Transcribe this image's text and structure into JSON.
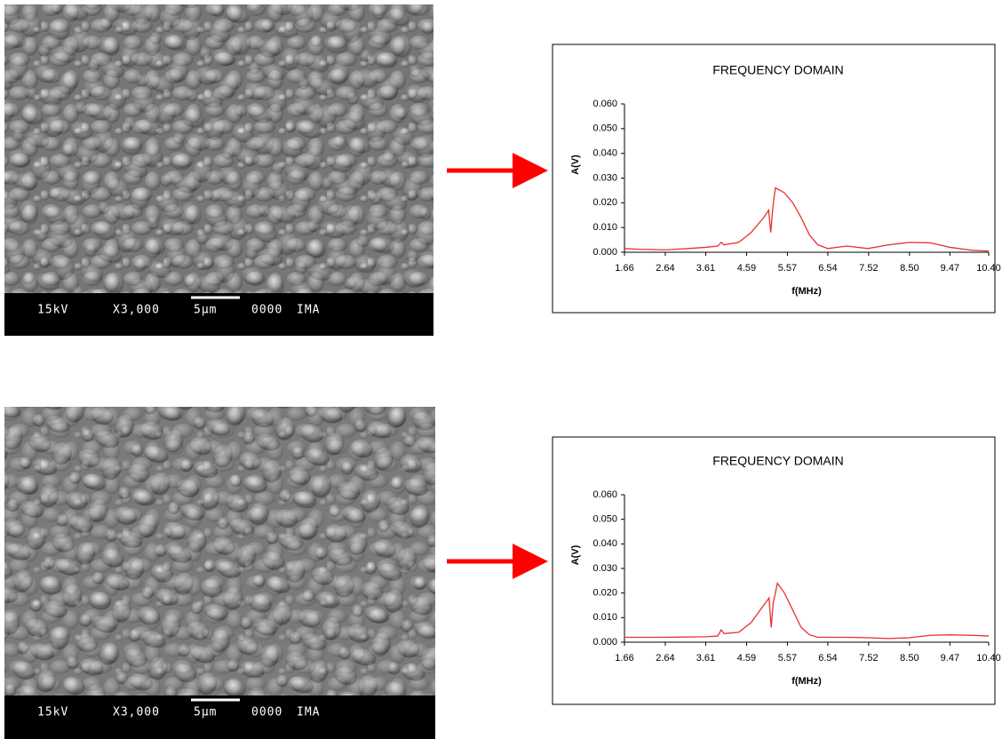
{
  "images": [
    {
      "voltage": "15kV",
      "magnification": "X3,000",
      "scale": "5μm",
      "code": "0000",
      "lab": "IMA"
    },
    {
      "voltage": "15kV",
      "magnification": "X3,000",
      "scale": "5μm",
      "code": "0000",
      "lab": "IMA"
    }
  ],
  "chart_data": [
    {
      "type": "line",
      "title": "FREQUENCY DOMAIN",
      "x_label": "f(MHz)",
      "y_label": "A(V)",
      "x": [
        1.66,
        2.0,
        2.64,
        3.2,
        3.61,
        3.9,
        3.98,
        4.05,
        4.4,
        4.7,
        5.0,
        5.12,
        5.17,
        5.22,
        5.28,
        5.4,
        5.5,
        5.7,
        5.9,
        6.1,
        6.3,
        6.54,
        7.0,
        7.5,
        8.0,
        8.5,
        9.0,
        9.47,
        10.0,
        10.4
      ],
      "series": [
        {
          "color": "#e8302a",
          "values": [
            0.0015,
            0.0012,
            0.001,
            0.0015,
            0.002,
            0.0025,
            0.004,
            0.003,
            0.004,
            0.008,
            0.014,
            0.017,
            0.008,
            0.018,
            0.026,
            0.025,
            0.024,
            0.02,
            0.014,
            0.007,
            0.003,
            0.0015,
            0.0025,
            0.0015,
            0.003,
            0.004,
            0.0038,
            0.002,
            0.0008,
            0.0005
          ]
        }
      ],
      "xlim": [
        1.66,
        10.4
      ],
      "ylim": [
        0,
        0.06
      ],
      "xticks": [
        1.66,
        2.64,
        3.61,
        4.59,
        5.57,
        6.54,
        7.52,
        {
          "value": 8.5,
          "label": "8.50"
        },
        9.47,
        {
          "value": 10.4,
          "label": "10.40"
        }
      ],
      "yticks": [
        {
          "value": 0,
          "label": "0.000"
        },
        {
          "value": 0.01,
          "label": "0.010"
        },
        {
          "value": 0.02,
          "label": "0.020"
        },
        {
          "value": 0.03,
          "label": "0.030"
        },
        {
          "value": 0.04,
          "label": "0.040"
        },
        {
          "value": 0.05,
          "label": "0.050"
        },
        {
          "value": 0.06,
          "label": "0.060"
        }
      ],
      "grid": false
    },
    {
      "type": "line",
      "title": "FREQUENCY DOMAIN",
      "x_label": "f(MHz)",
      "y_label": "A(V)",
      "x": [
        1.66,
        2.64,
        3.61,
        3.9,
        3.98,
        4.05,
        4.4,
        4.7,
        5.0,
        5.13,
        5.18,
        5.23,
        5.33,
        5.5,
        5.7,
        5.9,
        6.1,
        6.3,
        6.54,
        7.0,
        7.52,
        8.0,
        8.5,
        9.0,
        9.47,
        10.0,
        10.4
      ],
      "series": [
        {
          "color": "#e8302a",
          "values": [
            0.002,
            0.002,
            0.0022,
            0.0025,
            0.005,
            0.0035,
            0.004,
            0.008,
            0.015,
            0.018,
            0.006,
            0.016,
            0.024,
            0.02,
            0.013,
            0.006,
            0.003,
            0.002,
            0.002,
            0.002,
            0.0018,
            0.0015,
            0.0018,
            0.0028,
            0.003,
            0.0028,
            0.0025
          ]
        }
      ],
      "xlim": [
        1.66,
        10.4
      ],
      "ylim": [
        0,
        0.06
      ],
      "xticks": [
        1.66,
        2.64,
        3.61,
        4.59,
        5.57,
        6.54,
        7.52,
        {
          "value": 8.5,
          "label": "8.50"
        },
        9.47,
        {
          "value": 10.4,
          "label": "10.40"
        }
      ],
      "yticks": [
        {
          "value": 0,
          "label": "0.000"
        },
        {
          "value": 0.01,
          "label": "0.010"
        },
        {
          "value": 0.02,
          "label": "0.020"
        },
        {
          "value": 0.03,
          "label": "0.030"
        },
        {
          "value": 0.04,
          "label": "0.040"
        },
        {
          "value": 0.05,
          "label": "0.050"
        },
        {
          "value": 0.06,
          "label": "0.060"
        }
      ],
      "grid": false
    }
  ]
}
